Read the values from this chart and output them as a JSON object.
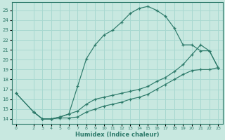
{
  "xlabel": "Humidex (Indice chaleur)",
  "bg_color": "#c8e8e0",
  "grid_color": "#a8d8d0",
  "line_color": "#2d7a6a",
  "xlim": [
    -0.5,
    23.5
  ],
  "ylim": [
    13.5,
    25.8
  ],
  "yticks": [
    14,
    15,
    16,
    17,
    18,
    19,
    20,
    21,
    22,
    23,
    24,
    25
  ],
  "xticks": [
    0,
    2,
    3,
    4,
    5,
    6,
    7,
    8,
    9,
    10,
    11,
    12,
    13,
    14,
    15,
    16,
    17,
    18,
    19,
    20,
    21,
    22,
    23
  ],
  "curve_top_x": [
    0,
    2,
    3,
    4,
    5,
    6,
    7,
    8,
    9,
    10,
    11,
    12,
    13,
    14,
    15,
    16,
    17,
    18,
    19,
    20,
    21,
    22,
    23
  ],
  "curve_top_y": [
    16.6,
    14.7,
    14.0,
    14.0,
    14.2,
    14.5,
    17.3,
    20.1,
    21.5,
    22.5,
    23.0,
    23.8,
    24.7,
    25.2,
    25.4,
    25.0,
    24.4,
    23.2,
    21.5,
    21.5,
    20.9,
    20.9,
    19.2
  ],
  "curve_mid_x": [
    0,
    2,
    3,
    4,
    5,
    6,
    7,
    8,
    9,
    10,
    11,
    12,
    13,
    14,
    15,
    16,
    17,
    18,
    19,
    20,
    21,
    22,
    23
  ],
  "curve_mid_y": [
    16.6,
    14.7,
    14.0,
    14.0,
    14.2,
    14.5,
    14.8,
    15.5,
    16.0,
    16.2,
    16.4,
    16.6,
    16.8,
    17.0,
    17.3,
    17.8,
    18.2,
    18.8,
    19.5,
    20.5,
    21.5,
    20.9,
    19.2
  ],
  "curve_bot_x": [
    2,
    3,
    4,
    5,
    6,
    7,
    8,
    9,
    10,
    11,
    12,
    13,
    14,
    15,
    16,
    17,
    18,
    19,
    20,
    21,
    22,
    23
  ],
  "curve_bot_y": [
    14.7,
    14.0,
    14.0,
    14.1,
    14.1,
    14.2,
    14.7,
    15.0,
    15.3,
    15.5,
    15.7,
    16.0,
    16.2,
    16.5,
    17.0,
    17.5,
    18.0,
    18.5,
    18.9,
    19.0,
    19.0,
    19.2
  ]
}
